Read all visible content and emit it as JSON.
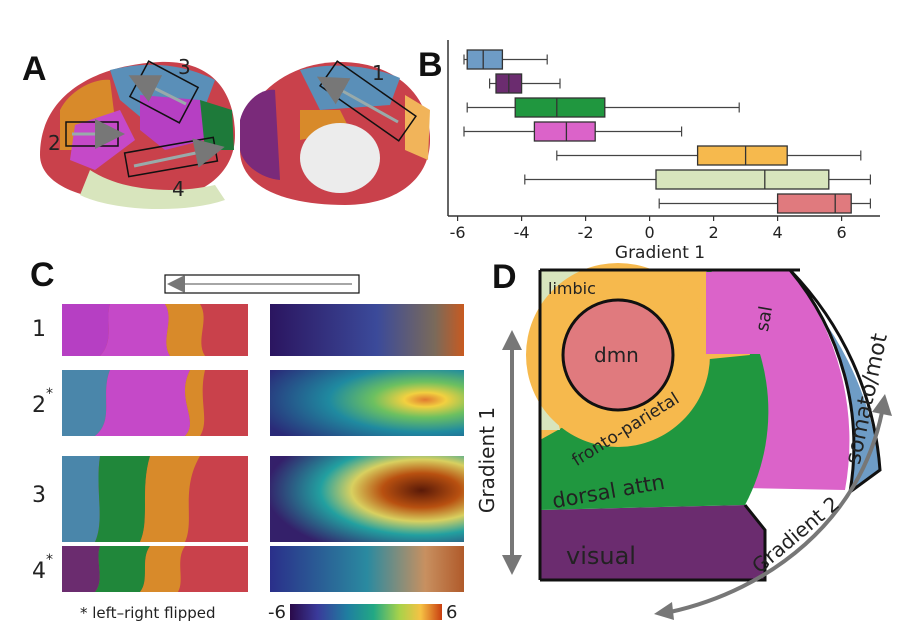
{
  "panels": {
    "A": {
      "letter": "A",
      "box_labels": [
        "3",
        "2",
        "4",
        "1"
      ]
    },
    "B": {
      "letter": "B"
    },
    "C": {
      "letter": "C",
      "rows": [
        "1",
        "2",
        "3",
        "4"
      ],
      "row_stars": [
        "",
        "*",
        "",
        "*"
      ],
      "footnote": "* left–right flipped",
      "colorbar_min": "-6",
      "colorbar_max": "6"
    },
    "D": {
      "letter": "D",
      "axis_gradient1": "Gradient 1",
      "axis_gradient2": "Gradient 2"
    }
  },
  "networks": [
    {
      "key": "dmn",
      "label": "dmn",
      "color": "#e07a7e"
    },
    {
      "key": "fronto",
      "label": "fronto-parietal",
      "color": "#f6b94d"
    },
    {
      "key": "dorsal",
      "label": "dorsal attn",
      "color": "#20973f"
    },
    {
      "key": "visual",
      "label": "visual",
      "color": "#6b2c6f"
    },
    {
      "key": "limbic",
      "label": "limbic",
      "color": "#d8e5bd"
    },
    {
      "key": "sal",
      "label": "sal",
      "color": "#db63c9"
    },
    {
      "key": "somato",
      "label": "somato/mot",
      "color": "#6e9cc6"
    }
  ],
  "chart_data": {
    "type": "box",
    "xlabel": "Gradient 1",
    "xlim": [
      -6.3,
      7.2
    ],
    "xticks": [
      -6,
      -4,
      -2,
      0,
      2,
      4,
      6
    ],
    "boxes": [
      {
        "color": "#6e9cc6",
        "whisker_low": -5.8,
        "q1": -5.7,
        "median": -5.2,
        "q3": -4.6,
        "whisker_high": -3.2
      },
      {
        "color": "#6b2c6f",
        "whisker_low": -5.0,
        "q1": -4.8,
        "median": -4.4,
        "q3": -4.0,
        "whisker_high": -2.8
      },
      {
        "color": "#20973f",
        "whisker_low": -5.7,
        "q1": -4.2,
        "median": -2.9,
        "q3": -1.4,
        "whisker_high": 2.8
      },
      {
        "color": "#db63c9",
        "whisker_low": -5.8,
        "q1": -3.6,
        "median": -2.6,
        "q3": -1.7,
        "whisker_high": 1.0
      },
      {
        "color": "#f6b94d",
        "whisker_low": -2.9,
        "q1": 1.5,
        "median": 3.0,
        "q3": 4.3,
        "whisker_high": 6.6
      },
      {
        "color": "#d8e5bd",
        "whisker_low": -3.9,
        "q1": 0.2,
        "median": 3.6,
        "q3": 5.6,
        "whisker_high": 6.9
      },
      {
        "color": "#e07a7e",
        "whisker_low": 0.3,
        "q1": 4.0,
        "median": 5.8,
        "q3": 6.3,
        "whisker_high": 6.9
      }
    ]
  }
}
